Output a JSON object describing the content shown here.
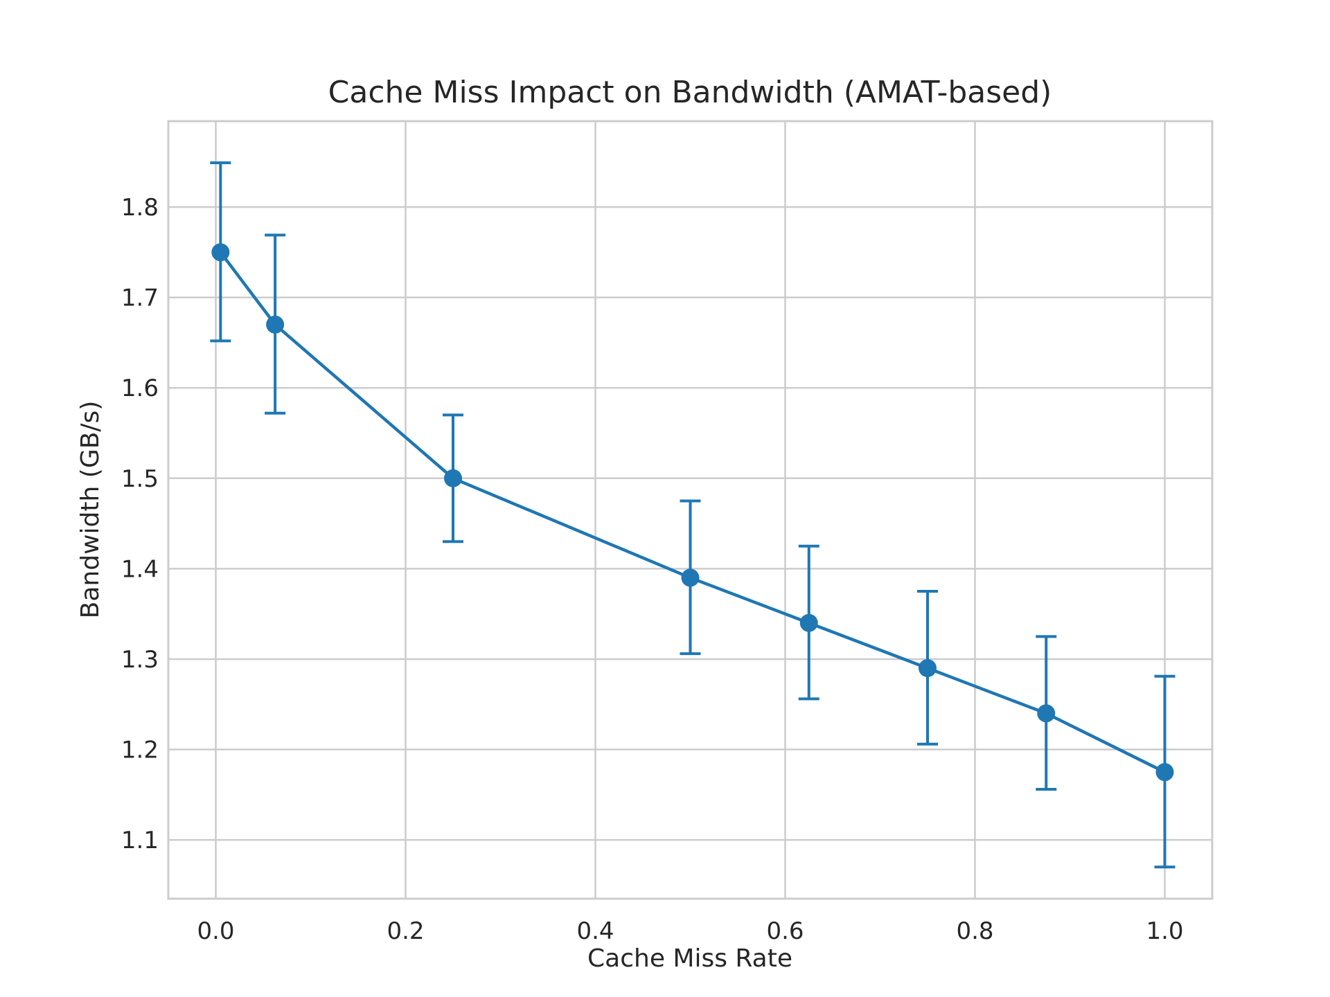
{
  "chart_data": {
    "type": "line",
    "title": "Cache Miss Impact on Bandwidth (AMAT-based)",
    "xlabel": "Cache Miss Rate",
    "ylabel": "Bandwidth (GB/s)",
    "xlim": [
      -0.05,
      1.05
    ],
    "ylim": [
      1.035,
      1.895
    ],
    "xticks": [
      0.0,
      0.2,
      0.4,
      0.6,
      0.8,
      1.0
    ],
    "xtick_labels": [
      "0.0",
      "0.2",
      "0.4",
      "0.6",
      "0.8",
      "1.0"
    ],
    "yticks": [
      1.1,
      1.2,
      1.3,
      1.4,
      1.5,
      1.6,
      1.7,
      1.8
    ],
    "ytick_labels": [
      "1.1",
      "1.2",
      "1.3",
      "1.4",
      "1.5",
      "1.6",
      "1.7",
      "1.8"
    ],
    "grid": true,
    "color": "#1f77b4",
    "series": [
      {
        "x": [
          0.005,
          0.0625,
          0.25,
          0.5,
          0.625,
          0.75,
          0.875,
          1.0
        ],
        "y": [
          1.75,
          1.67,
          1.5,
          1.39,
          1.34,
          1.29,
          1.24,
          1.175
        ],
        "err_low": [
          1.652,
          1.572,
          1.43,
          1.306,
          1.256,
          1.206,
          1.156,
          1.07
        ],
        "err_high": [
          1.849,
          1.769,
          1.57,
          1.475,
          1.425,
          1.375,
          1.325,
          1.281
        ]
      }
    ]
  }
}
